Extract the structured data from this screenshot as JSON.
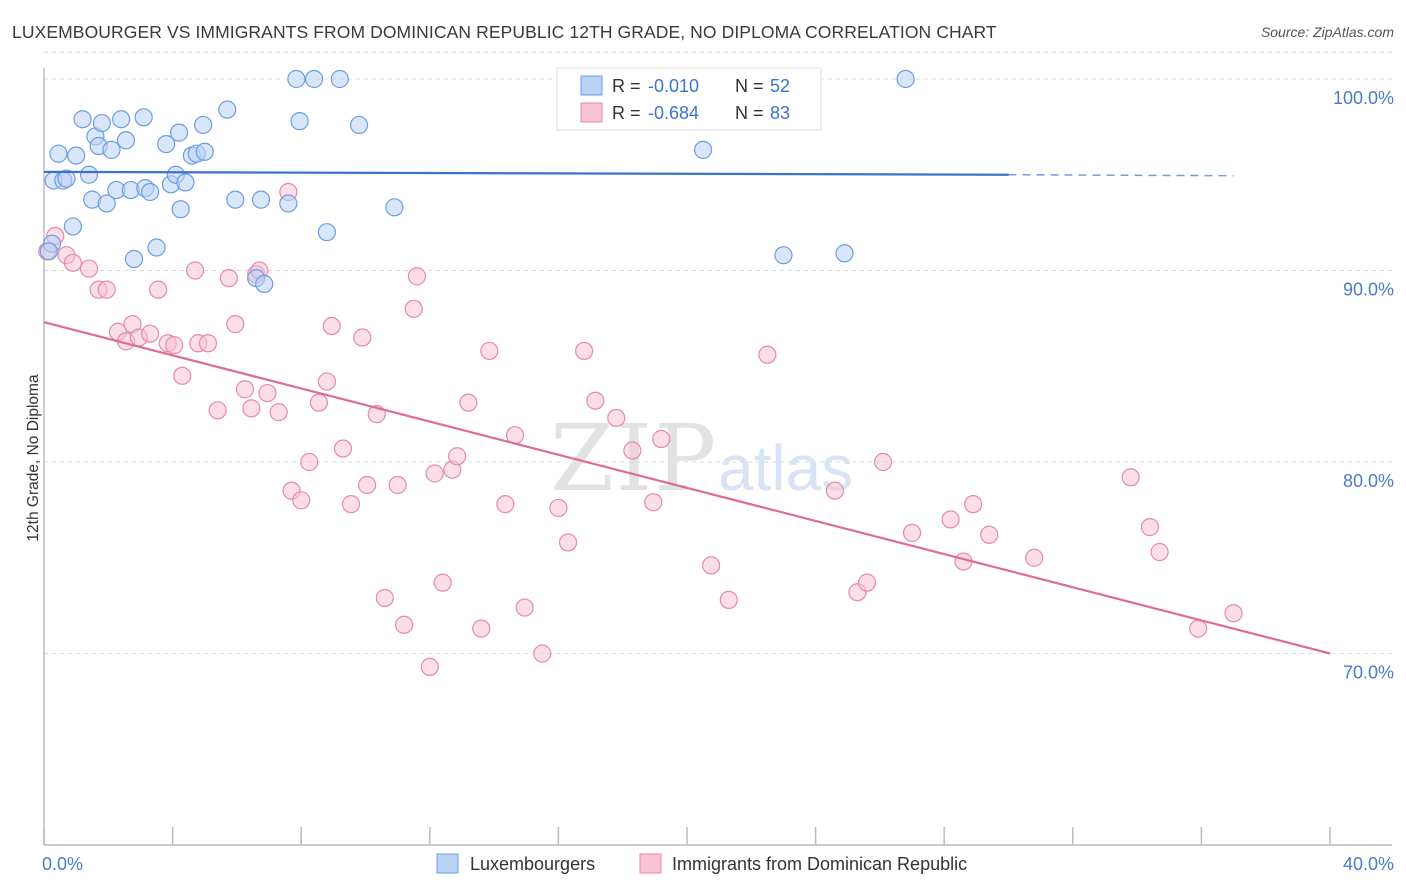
{
  "title": "LUXEMBOURGER VS IMMIGRANTS FROM DOMINICAN REPUBLIC 12TH GRADE, NO DIPLOMA CORRELATION CHART",
  "source": "Source: ZipAtlas.com",
  "watermark": {
    "zip": "ZIP",
    "atlas": "atlas"
  },
  "colors": {
    "blue_fill": "#b9d2f5",
    "blue_stroke": "#6d9de0",
    "blue_line": "#3a72cc",
    "pink_fill": "#f8c3d3",
    "pink_stroke": "#e68aa8",
    "pink_line": "#e06a96",
    "grid": "#dcdcdc",
    "axis_text": "#4a7cc8"
  },
  "legend": {
    "rows": [
      {
        "r_label": "R = ",
        "r_value": "-0.010",
        "n_label": "N = ",
        "n_value": "52"
      },
      {
        "r_label": "R = ",
        "r_value": "-0.684",
        "n_label": "N = ",
        "n_value": "83"
      }
    ]
  },
  "chart_data": {
    "type": "scatter",
    "title": "LUXEMBOURGER VS IMMIGRANTS FROM DOMINICAN REPUBLIC 12TH GRADE, NO DIPLOMA CORRELATION CHART",
    "xlabel": "",
    "ylabel": "12th Grade, No Diploma",
    "xlim": [
      0,
      40
    ],
    "ylim": [
      60,
      102
    ],
    "x_tick_labels": [
      "0.0%",
      "40.0%"
    ],
    "y_ticks": [
      {
        "value": 100,
        "label": "100.0%"
      },
      {
        "value": 90,
        "label": "90.0%"
      },
      {
        "value": 80,
        "label": "80.0%"
      },
      {
        "value": 70,
        "label": "70.0%"
      }
    ],
    "grid": "horizontal dashed",
    "legend_position": "top-center",
    "series": [
      {
        "name": "Luxembourgers",
        "color": "#b9d2f5",
        "trend": {
          "x0": 0,
          "y0": 95.15,
          "x1": 30,
          "y1": 95.0,
          "dashed_to_x": 37,
          "dashed_to_y": 94.95
        },
        "points": [
          [
            0.25,
            91.4
          ],
          [
            0.3,
            94.7
          ],
          [
            0.45,
            96.1
          ],
          [
            0.6,
            94.7
          ],
          [
            0.7,
            94.8
          ],
          [
            0.9,
            92.3
          ],
          [
            1.0,
            96.0
          ],
          [
            1.2,
            97.9
          ],
          [
            1.4,
            95.0
          ],
          [
            1.5,
            93.7
          ],
          [
            1.6,
            97.0
          ],
          [
            1.7,
            96.5
          ],
          [
            1.8,
            97.7
          ],
          [
            1.95,
            93.5
          ],
          [
            2.1,
            96.3
          ],
          [
            2.25,
            94.2
          ],
          [
            2.4,
            97.9
          ],
          [
            2.55,
            96.8
          ],
          [
            2.7,
            94.2
          ],
          [
            2.8,
            90.6
          ],
          [
            3.1,
            98.0
          ],
          [
            3.15,
            94.3
          ],
          [
            3.3,
            94.1
          ],
          [
            3.5,
            91.2
          ],
          [
            3.8,
            96.6
          ],
          [
            3.95,
            94.5
          ],
          [
            4.1,
            95.0
          ],
          [
            4.2,
            97.2
          ],
          [
            4.25,
            93.2
          ],
          [
            4.4,
            94.6
          ],
          [
            4.6,
            96.0
          ],
          [
            4.75,
            96.1
          ],
          [
            4.95,
            97.6
          ],
          [
            5.0,
            96.2
          ],
          [
            5.7,
            98.4
          ],
          [
            5.95,
            93.7
          ],
          [
            6.6,
            89.6
          ],
          [
            6.75,
            93.7
          ],
          [
            6.85,
            89.3
          ],
          [
            7.6,
            93.5
          ],
          [
            7.85,
            100.0
          ],
          [
            7.95,
            97.8
          ],
          [
            8.4,
            100.0
          ],
          [
            8.8,
            92.0
          ],
          [
            9.2,
            100.0
          ],
          [
            9.8,
            97.6
          ],
          [
            10.9,
            93.3
          ],
          [
            20.5,
            96.3
          ],
          [
            23.0,
            90.8
          ],
          [
            24.9,
            90.9
          ],
          [
            26.8,
            100.0
          ],
          [
            0.15,
            91.0
          ]
        ]
      },
      {
        "name": "Immigrants from Dominican Republic",
        "color": "#f8c3d3",
        "trend": {
          "x0": 0,
          "y0": 87.3,
          "x1": 40,
          "y1": 70.0
        },
        "points": [
          [
            0.1,
            91.0
          ],
          [
            0.35,
            91.8
          ],
          [
            0.7,
            90.8
          ],
          [
            0.9,
            90.4
          ],
          [
            1.4,
            90.1
          ],
          [
            1.7,
            89.0
          ],
          [
            1.95,
            89.0
          ],
          [
            2.3,
            86.8
          ],
          [
            2.55,
            86.3
          ],
          [
            2.75,
            87.2
          ],
          [
            2.95,
            86.5
          ],
          [
            3.3,
            86.7
          ],
          [
            3.55,
            89.0
          ],
          [
            3.85,
            86.2
          ],
          [
            4.05,
            86.1
          ],
          [
            4.3,
            84.5
          ],
          [
            4.7,
            90.0
          ],
          [
            4.8,
            86.2
          ],
          [
            5.1,
            86.2
          ],
          [
            5.4,
            82.7
          ],
          [
            5.75,
            89.6
          ],
          [
            5.95,
            87.2
          ],
          [
            6.25,
            83.8
          ],
          [
            6.45,
            82.8
          ],
          [
            6.6,
            89.8
          ],
          [
            6.7,
            90.0
          ],
          [
            6.95,
            83.6
          ],
          [
            7.3,
            82.6
          ],
          [
            7.6,
            94.1
          ],
          [
            7.7,
            78.5
          ],
          [
            8.0,
            78.0
          ],
          [
            8.25,
            80.0
          ],
          [
            8.55,
            83.1
          ],
          [
            8.8,
            84.2
          ],
          [
            8.95,
            87.1
          ],
          [
            9.3,
            80.7
          ],
          [
            9.55,
            77.8
          ],
          [
            9.9,
            86.5
          ],
          [
            10.05,
            78.8
          ],
          [
            10.35,
            82.5
          ],
          [
            10.6,
            72.9
          ],
          [
            11.0,
            78.8
          ],
          [
            11.2,
            71.5
          ],
          [
            11.5,
            88.0
          ],
          [
            11.6,
            89.7
          ],
          [
            12.0,
            69.3
          ],
          [
            12.15,
            79.4
          ],
          [
            12.4,
            73.7
          ],
          [
            12.7,
            79.6
          ],
          [
            12.85,
            80.3
          ],
          [
            13.2,
            83.1
          ],
          [
            13.6,
            71.3
          ],
          [
            13.85,
            85.8
          ],
          [
            14.35,
            77.8
          ],
          [
            14.65,
            81.4
          ],
          [
            14.95,
            72.4
          ],
          [
            15.5,
            70.0
          ],
          [
            16.0,
            77.6
          ],
          [
            16.3,
            75.8
          ],
          [
            16.8,
            85.8
          ],
          [
            17.15,
            83.2
          ],
          [
            17.8,
            82.3
          ],
          [
            18.3,
            80.6
          ],
          [
            18.95,
            77.9
          ],
          [
            19.2,
            81.2
          ],
          [
            20.75,
            74.6
          ],
          [
            21.3,
            72.8
          ],
          [
            22.5,
            85.6
          ],
          [
            24.6,
            78.5
          ],
          [
            25.3,
            73.2
          ],
          [
            25.6,
            73.7
          ],
          [
            26.1,
            80.0
          ],
          [
            27.0,
            76.3
          ],
          [
            28.2,
            77.0
          ],
          [
            28.6,
            74.8
          ],
          [
            28.9,
            77.8
          ],
          [
            29.4,
            76.2
          ],
          [
            30.8,
            75.0
          ],
          [
            33.8,
            79.2
          ],
          [
            34.4,
            76.6
          ],
          [
            34.7,
            75.3
          ],
          [
            35.9,
            71.3
          ],
          [
            37.0,
            72.1
          ]
        ]
      }
    ]
  },
  "bottom_legend": [
    {
      "label": "Luxembourgers"
    },
    {
      "label": "Immigrants from Dominican Republic"
    }
  ]
}
